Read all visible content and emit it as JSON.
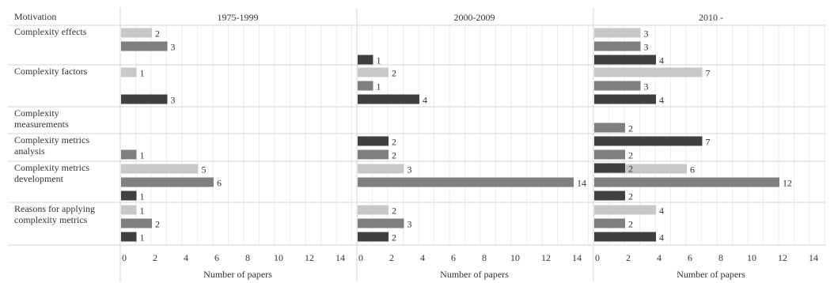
{
  "chart_data": {
    "type": "bar",
    "orientation": "horizontal",
    "row_header": "Motivation",
    "categories": [
      [
        "Complexity effects"
      ],
      [
        "Complexity factors"
      ],
      [
        "Complexity",
        "measurements"
      ],
      [
        "Complexity metrics",
        "analysis"
      ],
      [
        "Complexity metrics",
        "development"
      ],
      [
        "Reasons for applying",
        "complexity metrics"
      ]
    ],
    "panels": [
      {
        "title": "1975-1999",
        "xlabel": "Number of papers",
        "series": [
          {
            "values": [
              2,
              1,
              null,
              null,
              5,
              1
            ]
          },
          {
            "values": [
              3,
              null,
              null,
              1,
              6,
              2
            ]
          },
          {
            "values": [
              null,
              3,
              null,
              null,
              1,
              1
            ]
          }
        ]
      },
      {
        "title": "2000-2009",
        "xlabel": "Number of papers",
        "series": [
          {
            "values": [
              null,
              2,
              null,
              null,
              3,
              2
            ]
          },
          {
            "values": [
              null,
              1,
              null,
              2,
              14,
              3
            ]
          },
          {
            "values": [
              1,
              4,
              2,
              null,
              null,
              2
            ]
          }
        ]
      },
      {
        "title": "2010 -",
        "xlabel": "Number of papers",
        "series": [
          {
            "values": [
              3,
              7,
              null,
              null,
              6,
              4
            ]
          },
          {
            "values": [
              3,
              3,
              2,
              2,
              12,
              2
            ]
          },
          {
            "values": [
              4,
              4,
              7,
              2,
              2,
              4
            ]
          }
        ]
      }
    ],
    "series_colors": [
      "#c8c8c8",
      "#7f7f7f",
      "#404040"
    ],
    "xlim": [
      0,
      15
    ],
    "xticks": [
      0,
      2,
      4,
      6,
      8,
      10,
      12,
      14
    ],
    "grid": true,
    "legend": "none"
  }
}
